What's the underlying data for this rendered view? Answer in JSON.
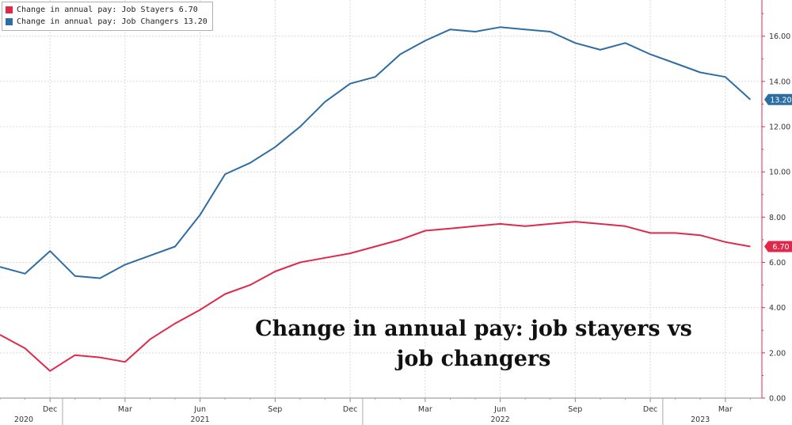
{
  "chart_data": {
    "type": "line",
    "legend_position": "top-left",
    "overlay_text": "Change in annual pay: job stayers vs job changers",
    "x": [
      "2020-10",
      "2020-11",
      "2020-12",
      "2021-01",
      "2021-02",
      "2021-03",
      "2021-04",
      "2021-05",
      "2021-06",
      "2021-07",
      "2021-08",
      "2021-09",
      "2021-10",
      "2021-11",
      "2021-12",
      "2022-01",
      "2022-02",
      "2022-03",
      "2022-04",
      "2022-05",
      "2022-06",
      "2022-07",
      "2022-08",
      "2022-09",
      "2022-10",
      "2022-11",
      "2022-12",
      "2023-01",
      "2023-02",
      "2023-03",
      "2023-04"
    ],
    "x_tick_labels": [
      {
        "date": "2020-12",
        "label": "Dec"
      },
      {
        "date": "2021-03",
        "label": "Mar"
      },
      {
        "date": "2021-06",
        "label": "Jun"
      },
      {
        "date": "2021-09",
        "label": "Sep"
      },
      {
        "date": "2021-12",
        "label": "Dec"
      },
      {
        "date": "2022-03",
        "label": "Mar"
      },
      {
        "date": "2022-06",
        "label": "Jun"
      },
      {
        "date": "2022-09",
        "label": "Sep"
      },
      {
        "date": "2022-12",
        "label": "Dec"
      },
      {
        "date": "2023-03",
        "label": "Mar"
      }
    ],
    "year_labels": [
      {
        "date": "2020-10",
        "label": "2020"
      },
      {
        "date": "2021-06",
        "label": "2021"
      },
      {
        "date": "2022-06",
        "label": "2022"
      },
      {
        "date": "2023-02",
        "label": "2023"
      }
    ],
    "y_ticks": [
      "0.00",
      "2.00",
      "4.00",
      "6.00",
      "8.00",
      "10.00",
      "12.00",
      "14.00",
      "16.00"
    ],
    "ylim": [
      0,
      17.6
    ],
    "y_axis_position": "right",
    "grid": true,
    "series": [
      {
        "name": "Change in annual pay: Job Stayers",
        "last_value": "6.70",
        "color": "#e0294a",
        "values": [
          2.8,
          2.2,
          1.2,
          1.9,
          1.8,
          1.6,
          2.6,
          3.3,
          3.9,
          4.6,
          5.0,
          5.6,
          6.0,
          6.2,
          6.4,
          6.7,
          7.0,
          7.4,
          7.5,
          7.6,
          7.7,
          7.6,
          7.7,
          7.8,
          7.7,
          7.6,
          7.3,
          7.3,
          7.2,
          6.9,
          6.7
        ]
      },
      {
        "name": "Change in annual pay: Job Changers",
        "last_value": "13.20",
        "color": "#2e6da4",
        "values": [
          5.8,
          5.5,
          6.5,
          5.4,
          5.3,
          5.9,
          6.3,
          6.7,
          8.1,
          9.9,
          10.4,
          11.1,
          12.0,
          13.1,
          13.9,
          14.2,
          15.2,
          15.8,
          16.3,
          16.2,
          16.4,
          16.3,
          16.2,
          15.7,
          15.4,
          15.7,
          15.2,
          14.8,
          14.4,
          14.2,
          13.2
        ]
      }
    ]
  }
}
